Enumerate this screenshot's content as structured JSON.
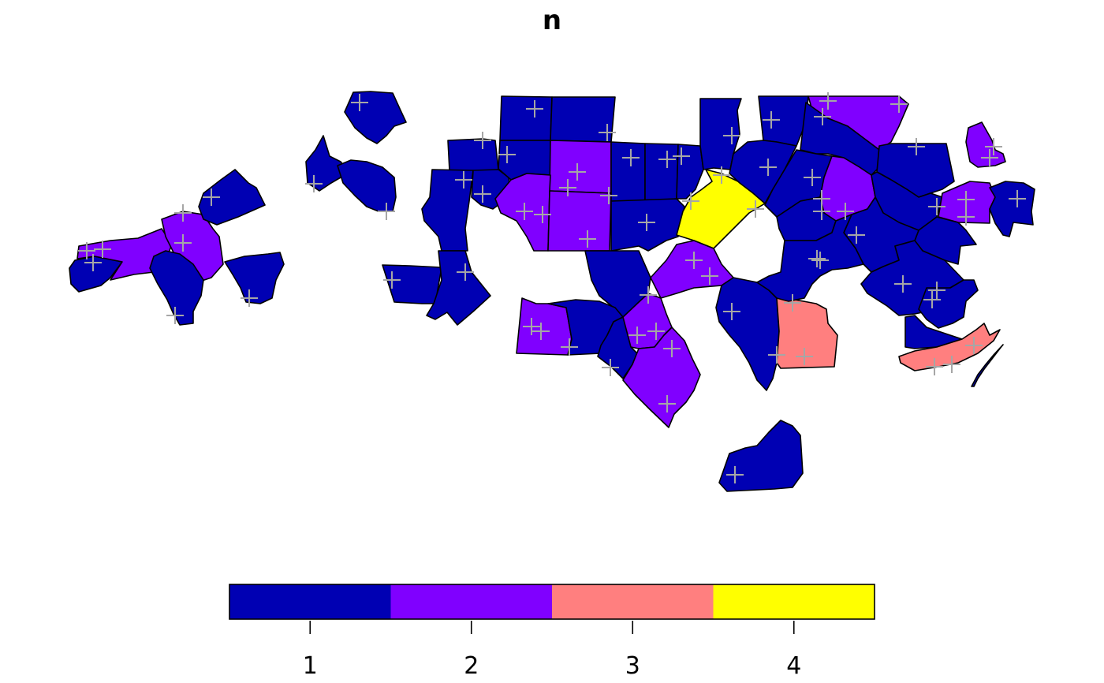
{
  "map": {
    "title": "n",
    "legend": {
      "classes": [
        {
          "value": 1,
          "label": "1",
          "color": "#0000b3"
        },
        {
          "value": 2,
          "label": "2",
          "color": "#8000ff"
        },
        {
          "value": 3,
          "label": "3",
          "color": "#ff7f7f"
        },
        {
          "value": 4,
          "label": "4",
          "color": "#ffff00"
        }
      ]
    },
    "region_count_by_value": {
      "1": 48,
      "2": 15,
      "3": 2,
      "4": 1
    }
  },
  "colors": {
    "class1": "#0000b3",
    "class2": "#8000ff",
    "class3": "#ff7f7f",
    "class4": "#ffff00",
    "border": "#000000",
    "centroid_marker": "#a6a6a6"
  }
}
